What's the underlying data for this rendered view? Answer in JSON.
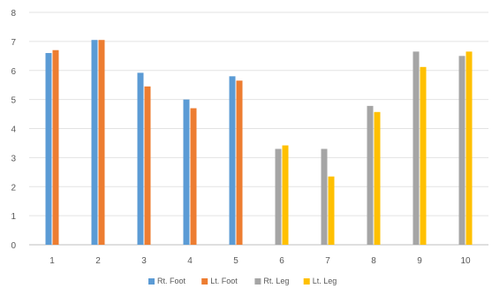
{
  "chart_data": {
    "type": "bar",
    "title": "",
    "xlabel": "",
    "ylabel": "",
    "categories": [
      "1",
      "2",
      "3",
      "4",
      "5",
      "6",
      "7",
      "8",
      "9",
      "10"
    ],
    "ylim": [
      0,
      8
    ],
    "yticks": [
      0,
      1,
      2,
      3,
      4,
      5,
      6,
      7,
      8
    ],
    "grid": true,
    "legend_position": "bottom",
    "series": [
      {
        "name": "Rt. Foot",
        "color": "#5B9BD5",
        "values": [
          6.6,
          7.05,
          5.92,
          5.0,
          5.8,
          null,
          null,
          null,
          null,
          null
        ]
      },
      {
        "name": "Lt. Foot",
        "color": "#ED7D31",
        "values": [
          6.7,
          7.05,
          5.45,
          4.7,
          5.65,
          null,
          null,
          null,
          null,
          null
        ]
      },
      {
        "name": "Rt. Leg",
        "color": "#A5A5A5",
        "values": [
          null,
          null,
          null,
          null,
          null,
          3.3,
          3.3,
          4.78,
          6.65,
          6.5
        ]
      },
      {
        "name": "Lt. Leg",
        "color": "#FFC000",
        "values": [
          null,
          null,
          null,
          null,
          null,
          3.42,
          2.35,
          4.57,
          6.12,
          6.65
        ]
      }
    ]
  }
}
